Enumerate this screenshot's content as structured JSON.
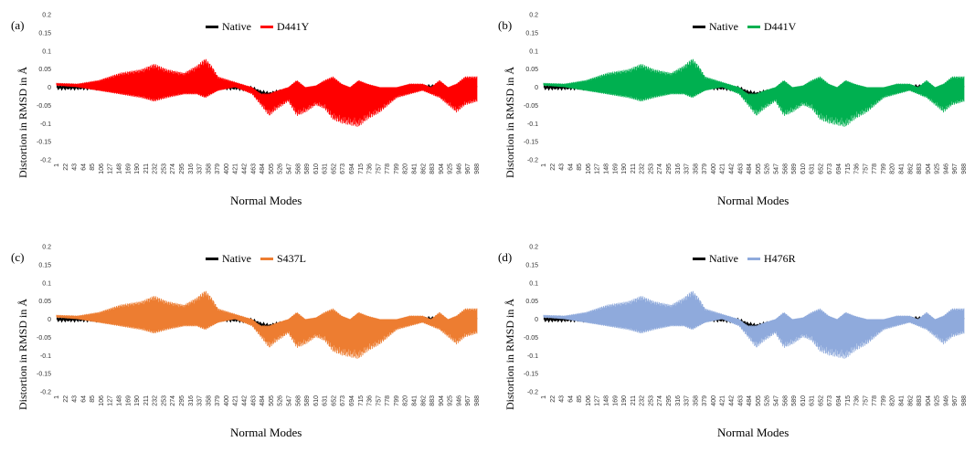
{
  "chart_data": [
    {
      "panel_label": "(a)",
      "type": "line",
      "xlabel": "Normal Modes",
      "ylabel": "Distortion in RMSD in Å",
      "ylim": [
        -0.2,
        0.2
      ],
      "yticks": [
        "0.2",
        "0.15",
        "0.1",
        "0.05",
        "0",
        "-0.05",
        "-0.1",
        "-0.15",
        "-0.2"
      ],
      "xticks": [
        "1",
        "22",
        "43",
        "64",
        "85",
        "106",
        "127",
        "148",
        "169",
        "190",
        "211",
        "232",
        "253",
        "274",
        "295",
        "316",
        "337",
        "358",
        "379",
        "400",
        "421",
        "442",
        "463",
        "484",
        "505",
        "526",
        "547",
        "568",
        "589",
        "610",
        "631",
        "652",
        "673",
        "694",
        "715",
        "736",
        "757",
        "778",
        "799",
        "820",
        "841",
        "862",
        "883",
        "904",
        "925",
        "946",
        "967",
        "988"
      ],
      "series": [
        {
          "name": "Native",
          "color": "#000000"
        },
        {
          "name": "D441Y",
          "color": "#ff0000"
        }
      ]
    },
    {
      "panel_label": "(b)",
      "type": "line",
      "xlabel": "Normal Modes",
      "ylabel": "Distortion in RMSD in Å",
      "ylim": [
        -0.2,
        0.2
      ],
      "yticks": [
        "0.2",
        "0.15",
        "0.1",
        "0.05",
        "0",
        "-0.05",
        "-0.1",
        "-0.15",
        "-0.2"
      ],
      "xticks": [
        "1",
        "22",
        "43",
        "64",
        "85",
        "106",
        "127",
        "148",
        "169",
        "190",
        "211",
        "232",
        "253",
        "274",
        "295",
        "316",
        "337",
        "358",
        "379",
        "400",
        "421",
        "442",
        "463",
        "484",
        "505",
        "526",
        "547",
        "568",
        "589",
        "610",
        "631",
        "652",
        "673",
        "694",
        "715",
        "736",
        "757",
        "778",
        "799",
        "820",
        "841",
        "862",
        "883",
        "904",
        "925",
        "946",
        "967",
        "988"
      ],
      "series": [
        {
          "name": "Native",
          "color": "#000000"
        },
        {
          "name": "D441V",
          "color": "#00b050"
        }
      ]
    },
    {
      "panel_label": "(c)",
      "type": "line",
      "xlabel": "Normal Modes",
      "ylabel": "Distortion in RMSD in Å",
      "ylim": [
        -0.2,
        0.2
      ],
      "yticks": [
        "0.2",
        "0.15",
        "0.1",
        "0.05",
        "0",
        "-0.05",
        "-0.1",
        "-0.15",
        "-0.2"
      ],
      "xticks": [
        "1",
        "22",
        "43",
        "64",
        "85",
        "106",
        "127",
        "148",
        "169",
        "190",
        "211",
        "232",
        "253",
        "274",
        "295",
        "316",
        "337",
        "358",
        "379",
        "400",
        "421",
        "442",
        "463",
        "484",
        "505",
        "526",
        "547",
        "568",
        "589",
        "610",
        "631",
        "652",
        "673",
        "694",
        "715",
        "736",
        "757",
        "778",
        "799",
        "820",
        "841",
        "862",
        "883",
        "904",
        "925",
        "946",
        "967",
        "988"
      ],
      "series": [
        {
          "name": "Native",
          "color": "#000000"
        },
        {
          "name": "S437L",
          "color": "#ed7d31"
        }
      ]
    },
    {
      "panel_label": "(d)",
      "type": "line",
      "xlabel": "Normal Modes",
      "ylabel": "Distortion in RMSD in Å",
      "ylim": [
        -0.2,
        0.2
      ],
      "yticks": [
        "0.2",
        "0.15",
        "0.1",
        "0.05",
        "0",
        "-0.05",
        "-0.1",
        "-0.15",
        "-0.2"
      ],
      "xticks": [
        "1",
        "22",
        "43",
        "64",
        "85",
        "106",
        "127",
        "148",
        "169",
        "190",
        "211",
        "232",
        "253",
        "274",
        "295",
        "316",
        "337",
        "358",
        "379",
        "400",
        "421",
        "442",
        "463",
        "484",
        "505",
        "526",
        "547",
        "568",
        "589",
        "610",
        "631",
        "652",
        "673",
        "694",
        "715",
        "736",
        "757",
        "778",
        "799",
        "820",
        "841",
        "862",
        "883",
        "904",
        "925",
        "946",
        "967",
        "988"
      ],
      "series": [
        {
          "name": "Native",
          "color": "#000000"
        },
        {
          "name": "H476R",
          "color": "#8faadc"
        }
      ]
    }
  ],
  "envelope": {
    "x": [
      1,
      50,
      100,
      150,
      200,
      230,
      260,
      300,
      330,
      350,
      365,
      380,
      420,
      460,
      480,
      500,
      520,
      545,
      565,
      585,
      610,
      630,
      650,
      670,
      690,
      710,
      730,
      760,
      780,
      800,
      830,
      860,
      880,
      900,
      920,
      940,
      960,
      988
    ],
    "upper": [
      0.012,
      0.01,
      0.02,
      0.04,
      0.05,
      0.065,
      0.05,
      0.04,
      0.06,
      0.08,
      0.06,
      0.03,
      0.015,
      0,
      -0.02,
      -0.02,
      -0.01,
      0,
      0.02,
      0.0,
      0.005,
      0.02,
      0.03,
      0.01,
      0.0,
      0.02,
      0.01,
      0.0,
      0.0,
      0.0,
      0.01,
      0.01,
      0.0,
      0.02,
      0.0,
      0.01,
      0.03,
      0.03
    ],
    "lower": [
      0.005,
      0.0,
      -0.01,
      -0.02,
      -0.03,
      -0.04,
      -0.03,
      -0.02,
      -0.02,
      -0.03,
      -0.02,
      -0.01,
      0.0,
      -0.02,
      -0.05,
      -0.08,
      -0.06,
      -0.04,
      -0.08,
      -0.07,
      -0.05,
      -0.06,
      -0.09,
      -0.1,
      -0.105,
      -0.11,
      -0.09,
      -0.07,
      -0.05,
      -0.03,
      -0.02,
      -0.01,
      -0.02,
      -0.03,
      -0.05,
      -0.07,
      -0.05,
      -0.04
    ],
    "native": [
      0.0,
      0.0,
      0.0,
      0.0,
      0.0,
      0.0,
      0.0,
      0.0,
      0.0,
      0.0,
      0.0,
      0.0,
      0.0,
      -0.005,
      -0.015,
      -0.02,
      -0.015,
      -0.01,
      -0.015,
      -0.02,
      -0.015,
      -0.01,
      -0.01,
      -0.015,
      -0.02,
      -0.02,
      -0.025,
      -0.035,
      -0.02,
      -0.01,
      -0.005,
      0.0,
      0.0,
      -0.005,
      -0.01,
      -0.01,
      -0.005,
      0.0
    ]
  }
}
